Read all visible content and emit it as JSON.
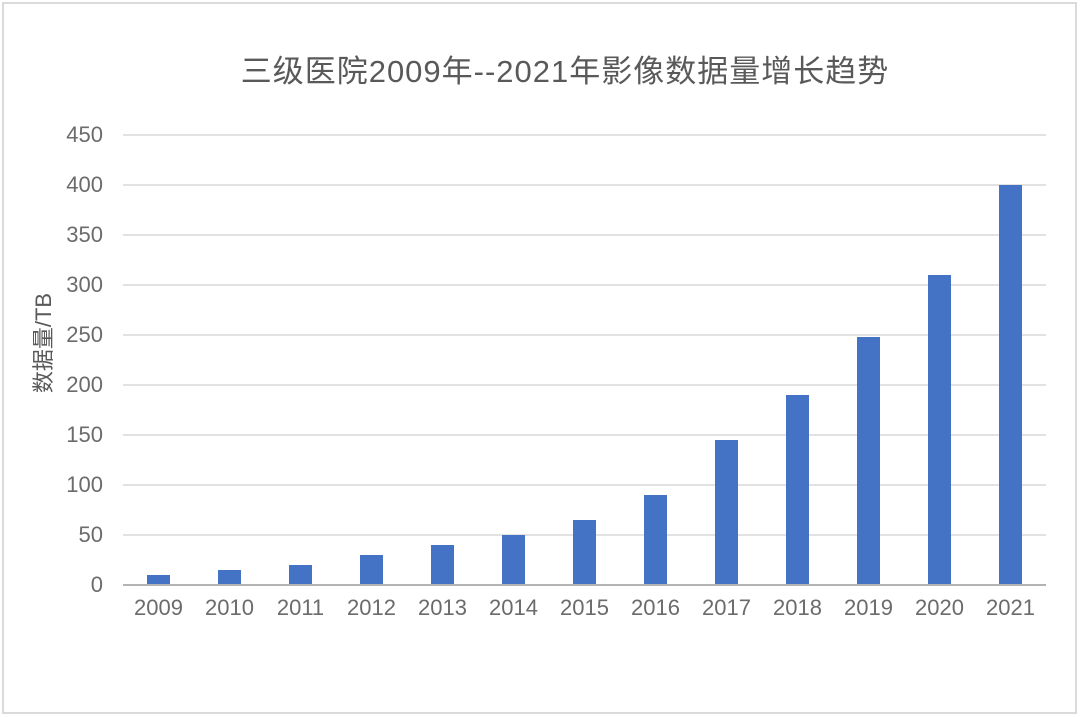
{
  "frame": {
    "background_color": "#ffffff",
    "border_color": "#dadada"
  },
  "chart_data": {
    "type": "bar",
    "title": "三级医院2009年--2021年影像数据量增长趋势",
    "xlabel": "",
    "ylabel": "数据量/TB",
    "categories": [
      "2009",
      "2010",
      "2011",
      "2012",
      "2013",
      "2014",
      "2015",
      "2016",
      "2017",
      "2018",
      "2019",
      "2020",
      "2021"
    ],
    "values": [
      10,
      15,
      20,
      30,
      40,
      50,
      65,
      90,
      145,
      190,
      248,
      310,
      400
    ],
    "ylim": [
      0,
      450
    ],
    "yticks": [
      0,
      50,
      100,
      150,
      200,
      250,
      300,
      350,
      400,
      450
    ],
    "grid": "horizontal",
    "legend": "none",
    "bar_color": "#4472c4",
    "gridline_color": "#e2e2e2",
    "axis_line_color": "#b3b3b3",
    "title_color": "#595959",
    "tick_label_color": "#6b6b6b"
  }
}
